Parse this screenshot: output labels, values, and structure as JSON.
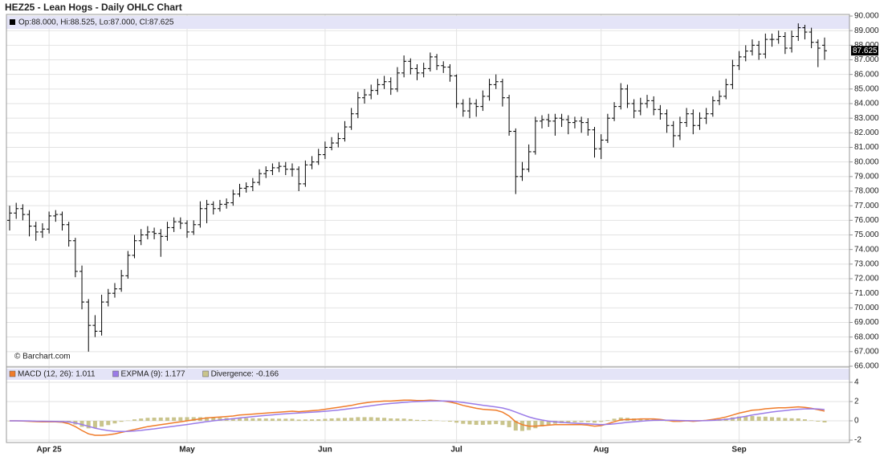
{
  "chart_data": [
    {
      "type": "ohlc",
      "title": "HEZ25 - Lean Hogs - Daily OHLC Chart",
      "ohlc_label": "Op:88.000, Hi:88.525, Lo:87.000, Cl:87.625",
      "credit": "© Barchart.com",
      "color": "#000000",
      "grid": true,
      "categories": [
        null,
        null,
        null,
        null,
        null,
        null,
        "Apr 25",
        null,
        null,
        null,
        null,
        null,
        null,
        null,
        null,
        null,
        null,
        null,
        null,
        null,
        null,
        null,
        null,
        null,
        null,
        null,
        null,
        "May",
        null,
        null,
        null,
        null,
        null,
        null,
        null,
        null,
        null,
        null,
        null,
        null,
        null,
        null,
        null,
        null,
        null,
        null,
        null,
        null,
        "Jun",
        null,
        null,
        null,
        null,
        null,
        null,
        null,
        null,
        null,
        null,
        null,
        null,
        null,
        null,
        null,
        null,
        null,
        null,
        null,
        "Jul",
        null,
        null,
        null,
        null,
        null,
        null,
        null,
        null,
        null,
        null,
        null,
        null,
        null,
        null,
        null,
        null,
        null,
        null,
        null,
        null,
        null,
        "Aug",
        null,
        null,
        null,
        null,
        null,
        null,
        null,
        null,
        null,
        null,
        null,
        null,
        null,
        null,
        null,
        null,
        null,
        null,
        null,
        null,
        "Sep",
        null,
        null,
        null,
        null,
        null,
        null,
        null,
        null,
        null,
        null,
        null,
        null,
        null
      ],
      "open": [
        76.0,
        76.5,
        76.8,
        76.4,
        75.6,
        75.2,
        75.4,
        76.3,
        76.4,
        75.7,
        74.6,
        72.5,
        70.4,
        68.8,
        68.4,
        70.4,
        71.0,
        71.3,
        72.2,
        73.6,
        74.6,
        75.0,
        75.2,
        75.1,
        74.9,
        75.5,
        75.9,
        75.8,
        75.2,
        75.7,
        76.8,
        77.1,
        76.8,
        77.1,
        77.2,
        77.8,
        78.2,
        78.3,
        78.6,
        79.2,
        79.4,
        79.6,
        79.7,
        79.5,
        79.5,
        78.5,
        79.8,
        80.0,
        80.5,
        81.0,
        81.3,
        81.6,
        82.4,
        83.3,
        84.4,
        84.6,
        84.9,
        85.3,
        85.5,
        85.0,
        86.1,
        86.9,
        86.4,
        86.1,
        86.4,
        87.2,
        86.6,
        86.5,
        85.9,
        84.0,
        83.5,
        84.0,
        83.8,
        84.5,
        85.3,
        85.5,
        84.4,
        82.1,
        79.0,
        79.5,
        80.7,
        82.8,
        82.9,
        82.8,
        83.0,
        82.9,
        82.7,
        82.8,
        82.7,
        82.2,
        80.9,
        81.5,
        83.0,
        83.8,
        85.0,
        84.0,
        83.5,
        84.0,
        84.2,
        83.6,
        83.3,
        82.5,
        81.8,
        82.7,
        83.3,
        82.5,
        83.0,
        83.3,
        84.2,
        84.5,
        85.3,
        86.6,
        87.2,
        87.6,
        88.0,
        87.4,
        88.4,
        88.4,
        88.6,
        87.8,
        88.6,
        89.2,
        88.9,
        88.2,
        88.0
      ],
      "high": [
        77.0,
        77.2,
        77.1,
        76.7,
        75.9,
        75.8,
        76.6,
        76.7,
        76.6,
        75.9,
        74.8,
        72.9,
        70.6,
        69.5,
        70.9,
        71.3,
        71.7,
        72.6,
        73.9,
        75.0,
        75.4,
        75.6,
        75.5,
        75.4,
        75.9,
        76.2,
        76.2,
        76.0,
        76.0,
        77.3,
        77.4,
        77.3,
        77.4,
        77.5,
        78.1,
        78.5,
        78.6,
        78.9,
        79.5,
        79.7,
        79.9,
        80.0,
        80.0,
        79.9,
        79.7,
        80.1,
        80.4,
        80.9,
        81.4,
        81.7,
        82.0,
        82.8,
        83.7,
        84.8,
        85.0,
        85.3,
        85.7,
        85.9,
        85.8,
        86.5,
        87.3,
        87.1,
        86.7,
        86.8,
        87.5,
        87.4,
        86.9,
        86.7,
        86.0,
        84.3,
        84.4,
        84.3,
        84.9,
        85.7,
        86.0,
        85.7,
        84.6,
        82.3,
        80.0,
        81.2,
        83.1,
        83.2,
        83.3,
        83.3,
        83.3,
        83.2,
        83.1,
        83.1,
        83.0,
        82.4,
        81.9,
        83.3,
        84.1,
        85.4,
        85.3,
        84.3,
        84.4,
        84.6,
        84.5,
        83.9,
        83.6,
        82.8,
        83.1,
        83.7,
        83.6,
        83.4,
        83.7,
        84.5,
        84.9,
        85.7,
        87.0,
        87.6,
        88.0,
        88.4,
        88.3,
        88.8,
        88.8,
        89.0,
        88.9,
        89.0,
        89.5,
        89.4,
        89.2,
        88.4,
        88.525
      ],
      "low": [
        75.3,
        76.1,
        76.0,
        74.9,
        74.6,
        74.8,
        75.1,
        75.9,
        75.3,
        74.2,
        72.1,
        69.9,
        67.0,
        68.0,
        68.1,
        70.1,
        70.7,
        71.1,
        72.0,
        73.4,
        74.3,
        74.7,
        74.7,
        73.5,
        74.6,
        75.2,
        75.4,
        74.8,
        75.0,
        75.5,
        75.8,
        76.4,
        76.6,
        76.8,
        77.0,
        77.6,
        77.9,
        78.0,
        78.4,
        78.9,
        79.1,
        79.3,
        79.1,
        79.0,
        78.0,
        78.3,
        79.5,
        79.8,
        80.2,
        80.8,
        81.0,
        81.4,
        82.2,
        83.0,
        84.0,
        84.3,
        84.6,
        85.0,
        84.6,
        84.8,
        85.8,
        86.0,
        85.6,
        85.8,
        86.2,
        86.3,
        86.1,
        85.5,
        83.7,
        83.1,
        83.0,
        83.1,
        83.5,
        84.2,
        85.0,
        83.8,
        81.8,
        77.8,
        78.7,
        79.3,
        80.5,
        82.3,
        82.4,
        81.8,
        82.4,
        81.9,
        82.3,
        82.0,
        81.8,
        80.3,
        80.2,
        81.3,
        82.8,
        83.6,
        83.7,
        83.0,
        83.2,
        83.7,
        83.2,
        82.9,
        82.0,
        81.0,
        81.5,
        82.4,
        81.9,
        82.2,
        82.6,
        83.1,
        83.9,
        84.3,
        85.0,
        86.3,
        86.9,
        87.3,
        87.0,
        87.1,
        87.9,
        88.1,
        87.4,
        87.5,
        88.3,
        88.4,
        87.8,
        86.5,
        87.0
      ],
      "close": [
        76.5,
        76.8,
        76.4,
        75.6,
        75.2,
        75.4,
        76.3,
        76.4,
        75.7,
        74.6,
        72.5,
        70.4,
        68.8,
        68.4,
        70.4,
        71.0,
        71.3,
        72.2,
        73.6,
        74.6,
        75.0,
        75.2,
        75.1,
        74.9,
        75.5,
        75.9,
        75.8,
        75.2,
        75.7,
        76.8,
        77.1,
        76.8,
        77.1,
        77.2,
        77.8,
        78.2,
        78.3,
        78.6,
        79.2,
        79.4,
        79.6,
        79.7,
        79.5,
        79.5,
        78.5,
        79.8,
        80.0,
        80.5,
        81.0,
        81.3,
        81.6,
        82.4,
        83.3,
        84.4,
        84.6,
        84.9,
        85.3,
        85.5,
        85.0,
        86.1,
        86.9,
        86.4,
        86.1,
        86.4,
        87.2,
        86.6,
        86.5,
        85.9,
        84.0,
        83.5,
        84.0,
        83.8,
        84.5,
        85.3,
        85.5,
        84.4,
        82.1,
        79.0,
        79.5,
        80.7,
        82.8,
        82.9,
        82.8,
        83.0,
        82.9,
        82.7,
        82.8,
        82.7,
        82.2,
        80.9,
        81.5,
        83.0,
        83.8,
        85.0,
        84.0,
        83.5,
        84.0,
        84.2,
        83.6,
        83.3,
        82.5,
        81.8,
        82.7,
        83.3,
        82.5,
        83.0,
        83.3,
        84.2,
        84.5,
        85.3,
        86.6,
        87.2,
        87.6,
        88.0,
        87.4,
        88.4,
        88.4,
        88.6,
        87.8,
        88.6,
        89.2,
        88.9,
        88.2,
        87.8,
        87.625
      ],
      "ylim": [
        66,
        90
      ],
      "yticks": [
        {
          "value": 66,
          "label": "66.000"
        },
        {
          "value": 67,
          "label": "67.000"
        },
        {
          "value": 68,
          "label": "68.000"
        },
        {
          "value": 69,
          "label": "69.000"
        },
        {
          "value": 70,
          "label": "70.000"
        },
        {
          "value": 71,
          "label": "71.000"
        },
        {
          "value": 72,
          "label": "72.000"
        },
        {
          "value": 73,
          "label": "73.000"
        },
        {
          "value": 74,
          "label": "74.000"
        },
        {
          "value": 75,
          "label": "75.000"
        },
        {
          "value": 76,
          "label": "76.000"
        },
        {
          "value": 77,
          "label": "77.000"
        },
        {
          "value": 78,
          "label": "78.000"
        },
        {
          "value": 79,
          "label": "79.000"
        },
        {
          "value": 80,
          "label": "80.000"
        },
        {
          "value": 81,
          "label": "81.000"
        },
        {
          "value": 82,
          "label": "82.000"
        },
        {
          "value": 83,
          "label": "83.000"
        },
        {
          "value": 84,
          "label": "84.000"
        },
        {
          "value": 85,
          "label": "85.000"
        },
        {
          "value": 86,
          "label": "86.000"
        },
        {
          "value": 87,
          "label": "87.000"
        },
        {
          "value": 88,
          "label": "88.000"
        },
        {
          "value": 89,
          "label": "89.000"
        },
        {
          "value": 90,
          "label": "90.000"
        }
      ]
    },
    {
      "type": "line",
      "grid": true,
      "ylim": [
        -2.25,
        5.5
      ],
      "yticks": [
        -2,
        0,
        2,
        4
      ],
      "series": [
        {
          "name": "MACD (12, 26): 1.011",
          "color": "#f07c2a",
          "kind": "line",
          "values": [
            0,
            0,
            -0.02,
            -0.05,
            -0.08,
            -0.1,
            -0.1,
            -0.1,
            -0.15,
            -0.3,
            -0.6,
            -1.0,
            -1.35,
            -1.5,
            -1.5,
            -1.45,
            -1.35,
            -1.2,
            -1.05,
            -0.9,
            -0.75,
            -0.6,
            -0.5,
            -0.4,
            -0.3,
            -0.2,
            -0.1,
            0,
            0.1,
            0.2,
            0.3,
            0.35,
            0.4,
            0.45,
            0.5,
            0.6,
            0.65,
            0.7,
            0.75,
            0.8,
            0.85,
            0.9,
            0.95,
            1.0,
            0.95,
            1.0,
            1.05,
            1.1,
            1.2,
            1.3,
            1.4,
            1.5,
            1.6,
            1.75,
            1.85,
            1.95,
            2.0,
            2.05,
            2.05,
            2.1,
            2.15,
            2.15,
            2.1,
            2.1,
            2.15,
            2.1,
            2.05,
            1.95,
            1.8,
            1.6,
            1.45,
            1.3,
            1.2,
            1.15,
            1.1,
            0.9,
            0.5,
            -0.1,
            -0.4,
            -0.55,
            -0.55,
            -0.5,
            -0.45,
            -0.4,
            -0.4,
            -0.4,
            -0.4,
            -0.4,
            -0.45,
            -0.55,
            -0.5,
            -0.3,
            -0.1,
            0.1,
            0.15,
            0.15,
            0.2,
            0.2,
            0.2,
            0.15,
            0.05,
            -0.05,
            -0.05,
            0,
            -0.05,
            0,
            0.05,
            0.15,
            0.25,
            0.4,
            0.6,
            0.8,
            0.95,
            1.1,
            1.15,
            1.25,
            1.3,
            1.35,
            1.35,
            1.4,
            1.45,
            1.4,
            1.3,
            1.15,
            1.011
          ]
        },
        {
          "name": "EXPMA (9): 1.177",
          "color": "#9a7be8",
          "kind": "line",
          "values": [
            0,
            0,
            0,
            -0.01,
            -0.03,
            -0.04,
            -0.05,
            -0.06,
            -0.08,
            -0.12,
            -0.22,
            -0.38,
            -0.57,
            -0.76,
            -0.9,
            -1.01,
            -1.08,
            -1.1,
            -1.09,
            -1.05,
            -0.99,
            -0.91,
            -0.83,
            -0.74,
            -0.65,
            -0.56,
            -0.47,
            -0.38,
            -0.28,
            -0.18,
            -0.08,
            0,
            0.08,
            0.15,
            0.22,
            0.3,
            0.37,
            0.44,
            0.5,
            0.56,
            0.62,
            0.68,
            0.73,
            0.78,
            0.82,
            0.86,
            0.9,
            0.94,
            0.99,
            1.05,
            1.12,
            1.2,
            1.28,
            1.37,
            1.47,
            1.57,
            1.66,
            1.74,
            1.8,
            1.86,
            1.92,
            1.97,
            2.0,
            2.02,
            2.05,
            2.06,
            2.06,
            2.04,
            1.99,
            1.91,
            1.82,
            1.72,
            1.62,
            1.53,
            1.44,
            1.33,
            1.16,
            0.91,
            0.65,
            0.41,
            0.22,
            0.08,
            -0.03,
            -0.1,
            -0.16,
            -0.21,
            -0.25,
            -0.28,
            -0.31,
            -0.36,
            -0.39,
            -0.37,
            -0.32,
            -0.24,
            -0.16,
            -0.1,
            -0.04,
            0.01,
            0.05,
            0.07,
            0.07,
            0.05,
            0.03,
            0.02,
            0.01,
            0.01,
            0.02,
            0.05,
            0.09,
            0.15,
            0.24,
            0.35,
            0.47,
            0.6,
            0.71,
            0.82,
            0.92,
            1.0,
            1.07,
            1.14,
            1.2,
            1.24,
            1.25,
            1.23,
            1.177
          ]
        },
        {
          "name": "Divergence: -0.166",
          "color": "#c9c48c",
          "kind": "bar",
          "values": [
            0,
            0,
            -0.02,
            -0.04,
            -0.05,
            -0.06,
            -0.05,
            -0.04,
            -0.07,
            -0.18,
            -0.38,
            -0.62,
            -0.78,
            -0.74,
            -0.6,
            -0.44,
            -0.27,
            -0.1,
            0.04,
            0.15,
            0.24,
            0.31,
            0.33,
            0.34,
            0.35,
            0.36,
            0.37,
            0.38,
            0.38,
            0.38,
            0.38,
            0.35,
            0.32,
            0.3,
            0.28,
            0.3,
            0.28,
            0.26,
            0.25,
            0.24,
            0.23,
            0.22,
            0.22,
            0.22,
            0.13,
            0.14,
            0.15,
            0.16,
            0.21,
            0.25,
            0.28,
            0.3,
            0.32,
            0.38,
            0.38,
            0.38,
            0.34,
            0.31,
            0.25,
            0.24,
            0.23,
            0.18,
            0.1,
            0.08,
            0.1,
            0.04,
            -0.01,
            -0.09,
            -0.19,
            -0.31,
            -0.37,
            -0.42,
            -0.42,
            -0.38,
            -0.34,
            -0.43,
            -0.66,
            -1.01,
            -1.05,
            -0.96,
            -0.77,
            -0.58,
            -0.42,
            -0.3,
            -0.24,
            -0.19,
            -0.15,
            -0.12,
            -0.14,
            -0.19,
            -0.11,
            0.07,
            0.22,
            0.34,
            0.31,
            0.25,
            0.24,
            0.19,
            0.15,
            0.08,
            -0.02,
            -0.1,
            -0.08,
            -0.02,
            -0.06,
            -0.01,
            0.03,
            0.1,
            0.16,
            0.25,
            0.36,
            0.45,
            0.48,
            0.5,
            0.44,
            0.43,
            0.38,
            0.35,
            0.28,
            0.26,
            0.25,
            0.16,
            0.05,
            -0.08,
            -0.166
          ]
        }
      ]
    }
  ]
}
